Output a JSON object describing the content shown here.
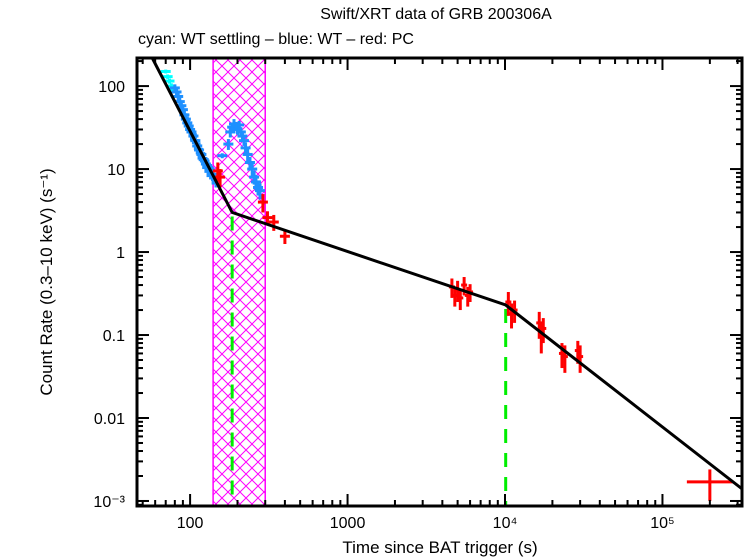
{
  "chart_data": {
    "type": "scatter",
    "title": "Swift/XRT data of GRB 200306A",
    "subtitle": "cyan: WT settling – blue: WT – red: PC",
    "xlabel": "Time since BAT trigger (s)",
    "ylabel": "Count Rate (0.3–10 keV) (s⁻¹)",
    "xscale": "log",
    "yscale": "log",
    "xlim": [
      46,
      320000
    ],
    "ylim": [
      0.00087,
      218
    ],
    "x_ticks": [
      {
        "value": 100,
        "label": "100"
      },
      {
        "value": 1000,
        "label": "1000"
      },
      {
        "value": 10000,
        "label": "10⁴"
      },
      {
        "value": 100000,
        "label": "10⁵"
      }
    ],
    "y_ticks": [
      {
        "value": 100,
        "label": "100"
      },
      {
        "value": 10,
        "label": "10"
      },
      {
        "value": 1,
        "label": "1"
      },
      {
        "value": 0.1,
        "label": "0.1"
      },
      {
        "value": 0.01,
        "label": "0.01"
      },
      {
        "value": 0.001,
        "label": "10⁻³"
      }
    ],
    "colors": {
      "wt_settling": "#00ffff",
      "wt": "#1e90ff",
      "pc": "#ff0000",
      "model": "#000000",
      "breaks": "#00ee00",
      "flare_band": "#ff00ff"
    },
    "flare_interval": [
      140,
      300
    ],
    "breaks": [
      185,
      10100
    ],
    "model": {
      "name": "broken power law fit",
      "points": [
        [
          57.5,
          218
        ],
        [
          185,
          3.0
        ],
        [
          10100,
          0.23
        ],
        [
          320000,
          0.0014
        ]
      ]
    },
    "series": [
      {
        "name": "WT settling",
        "color": "#00ffff",
        "points": [
          [
            70,
            150,
            8
          ],
          [
            72,
            130,
            8
          ],
          [
            74,
            115,
            8
          ],
          [
            76,
            100,
            8
          ],
          [
            78,
            90,
            8
          ]
        ]
      },
      {
        "name": "WT",
        "color": "#1e90ff",
        "points": [
          [
            80,
            95,
            10
          ],
          [
            82,
            85,
            12
          ],
          [
            84,
            75,
            10
          ],
          [
            86,
            65,
            10
          ],
          [
            88,
            58,
            9
          ],
          [
            90,
            52,
            8
          ],
          [
            92,
            45,
            8
          ],
          [
            94,
            40,
            7
          ],
          [
            96,
            36,
            7
          ],
          [
            98,
            33,
            6
          ],
          [
            100,
            30,
            6
          ],
          [
            102,
            28,
            6
          ],
          [
            105,
            25,
            5
          ],
          [
            108,
            22,
            5
          ],
          [
            111,
            19,
            4
          ],
          [
            114,
            17,
            4
          ],
          [
            118,
            15,
            3
          ],
          [
            122,
            13,
            3
          ],
          [
            126,
            11.5,
            2.5
          ],
          [
            130,
            10.5,
            2.5
          ],
          [
            135,
            9.5,
            2
          ],
          [
            140,
            8.5,
            2
          ],
          [
            146,
            7.5,
            1.5
          ],
          [
            160,
            14.5,
            1
          ],
          [
            175,
            20,
            3
          ],
          [
            180,
            28,
            4
          ],
          [
            185,
            32,
            4
          ],
          [
            190,
            35,
            5
          ],
          [
            195,
            33,
            4
          ],
          [
            200,
            30,
            4
          ],
          [
            205,
            34,
            4
          ],
          [
            210,
            28,
            4
          ],
          [
            215,
            25,
            3
          ],
          [
            220,
            22,
            3
          ],
          [
            225,
            18,
            3
          ],
          [
            232,
            15,
            2.5
          ],
          [
            240,
            12,
            2
          ],
          [
            248,
            10,
            2
          ],
          [
            255,
            8,
            1.5
          ],
          [
            262,
            7,
            1.5
          ],
          [
            270,
            6,
            1.2
          ],
          [
            278,
            5.5,
            1.2
          ]
        ]
      },
      {
        "name": "PC",
        "color": "#ff0000",
        "points": [
          [
            150,
            9.5,
            2.5
          ],
          [
            155,
            8,
            2
          ],
          [
            290,
            4.0,
            1.0
          ],
          [
            310,
            2.6,
            0.5
          ],
          [
            340,
            2.3,
            0.5
          ],
          [
            400,
            1.55,
            0.3
          ],
          [
            4600,
            0.38,
            0.1
          ],
          [
            4800,
            0.3,
            0.08
          ],
          [
            5000,
            0.35,
            0.1
          ],
          [
            5200,
            0.28,
            0.08
          ],
          [
            5500,
            0.4,
            0.1
          ],
          [
            5800,
            0.3,
            0.08
          ],
          [
            6000,
            0.33,
            0.08
          ],
          [
            10500,
            0.25,
            0.08
          ],
          [
            11000,
            0.18,
            0.06
          ],
          [
            11500,
            0.2,
            0.06
          ],
          [
            16500,
            0.14,
            0.05
          ],
          [
            17000,
            0.1,
            0.04
          ],
          [
            17500,
            0.12,
            0.04
          ],
          [
            23000,
            0.06,
            0.02
          ],
          [
            24000,
            0.055,
            0.02
          ],
          [
            29000,
            0.065,
            0.02
          ],
          [
            30000,
            0.055,
            0.02
          ],
          [
            200000,
            0.0017,
            0.0007
          ]
        ]
      }
    ]
  }
}
